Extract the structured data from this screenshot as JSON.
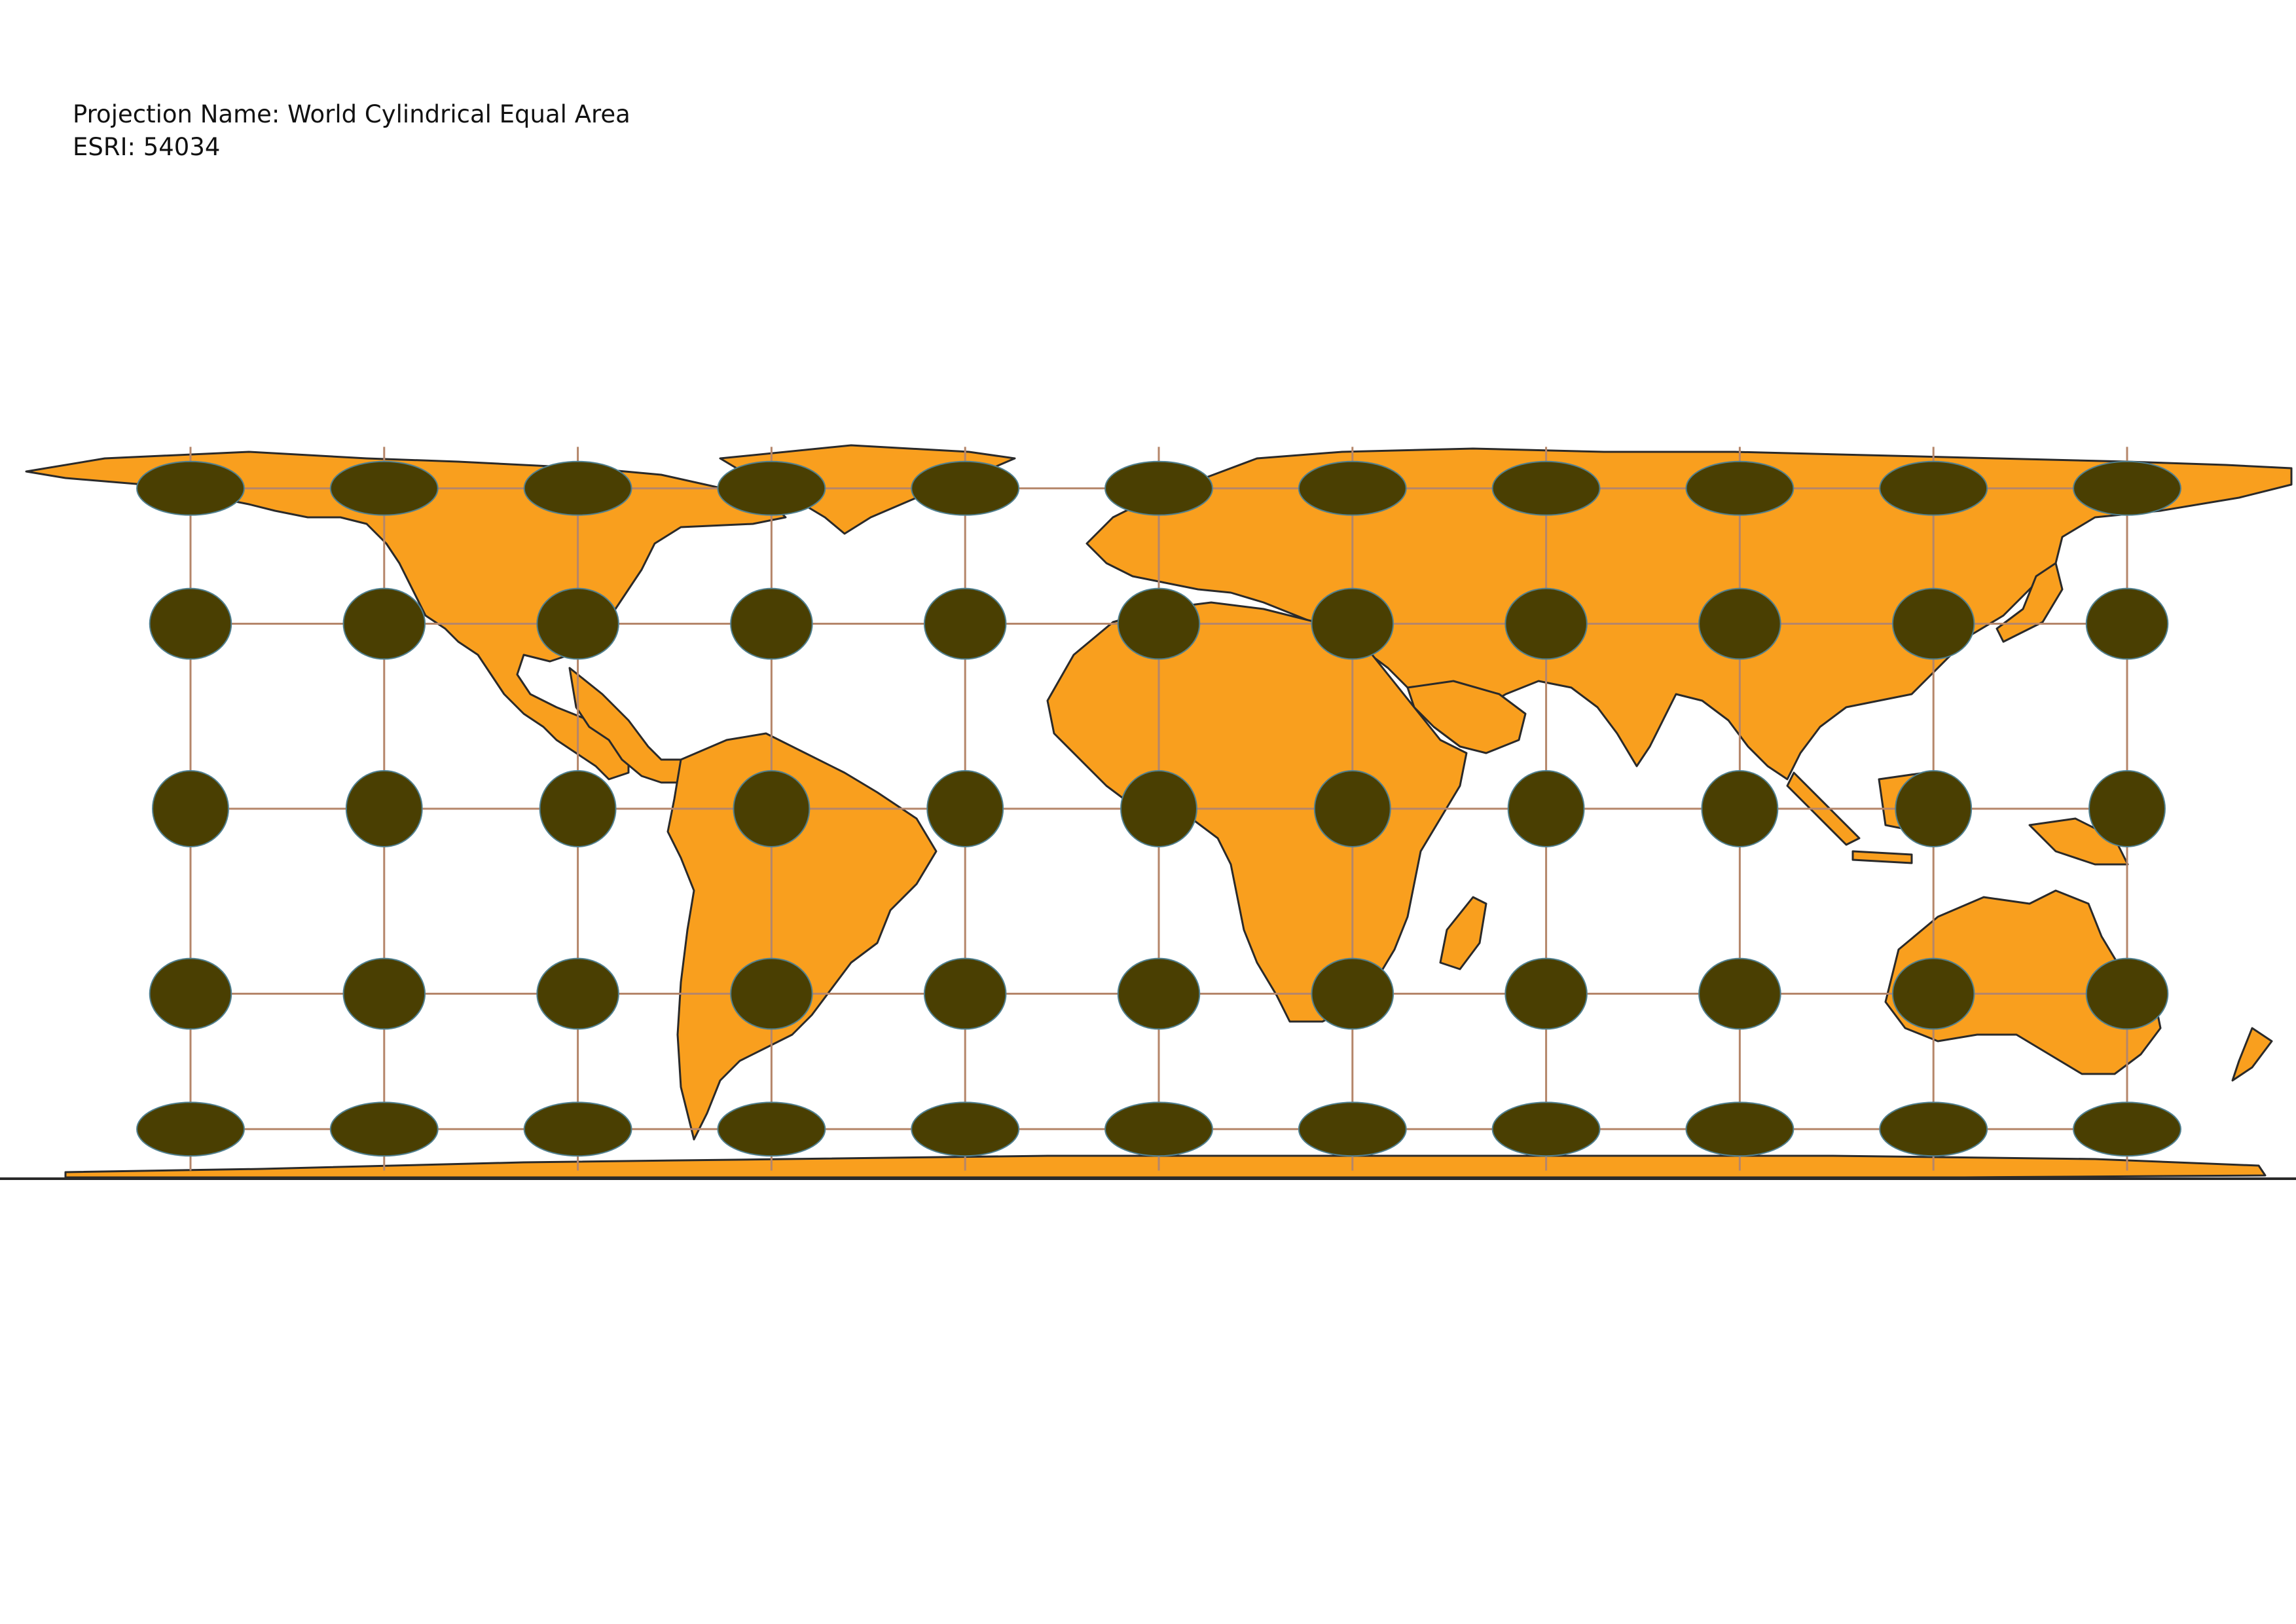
{
  "caption": {
    "projection_line": "Projection Name: World Cylindrical Equal Area",
    "code_line": "ESRI: 54034"
  },
  "map": {
    "projection": "World Cylindrical Equal Area",
    "esri_code": "54034",
    "colors": {
      "land": "#F99F1E",
      "border": "#2a2a2a",
      "graticule": "#B5866A",
      "indicatrix": "#4A3F02",
      "indicatrix_outline": "#4F7F8F",
      "background": "#FFFFFF"
    },
    "graticule": {
      "longitudes": [
        -150,
        -120,
        -90,
        -60,
        -30,
        0,
        30,
        60,
        90,
        120,
        150
      ],
      "latitudes": [
        -60,
        -30,
        0,
        30,
        60
      ]
    },
    "indicatrix_radius_km": 750
  }
}
